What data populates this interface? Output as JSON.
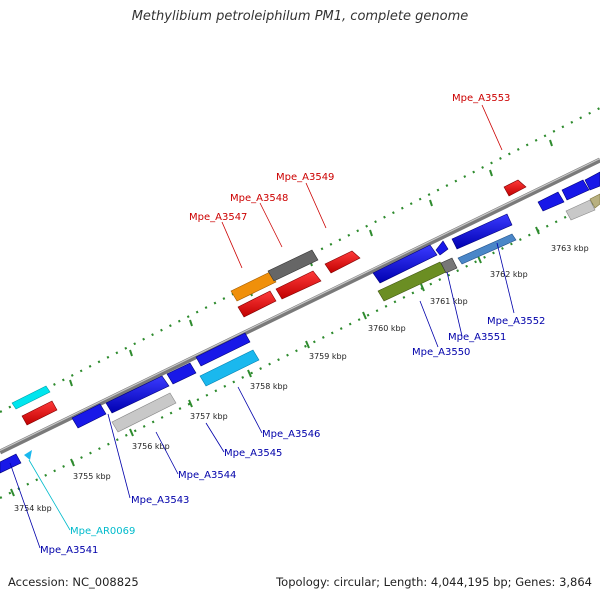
{
  "title": "Methylibium petroleiphilum PM1, complete genome",
  "footer": {
    "accession": "Accession: NC_008825",
    "info": "Topology: circular; Length: 4,044,195 bp; Genes: 3,864"
  },
  "colors": {
    "backbone": "#888888",
    "tick": "#2e8b2e",
    "label_top": "#cc0000",
    "label_bottom": "#0000aa",
    "label_rna": "#00bbcc"
  },
  "kbp_labels": [
    "3754 kbp",
    "3755 kbp",
    "3756 kbp",
    "3757 kbp",
    "3758 kbp",
    "3759 kbp",
    "3760 kbp",
    "3761 kbp",
    "3762 kbp",
    "3763 kbp"
  ],
  "gene_labels_top": [
    "Mpe_A3547",
    "Mpe_A3548",
    "Mpe_A3549",
    "Mpe_A3553"
  ],
  "gene_labels_bottom": [
    "Mpe_A3541",
    "Mpe_A3543",
    "Mpe_A3544",
    "Mpe_A3545",
    "Mpe_A3546",
    "Mpe_A3550",
    "Mpe_A3551",
    "Mpe_A3552"
  ],
  "gene_labels_rna": [
    "Mpe_AR0069"
  ]
}
